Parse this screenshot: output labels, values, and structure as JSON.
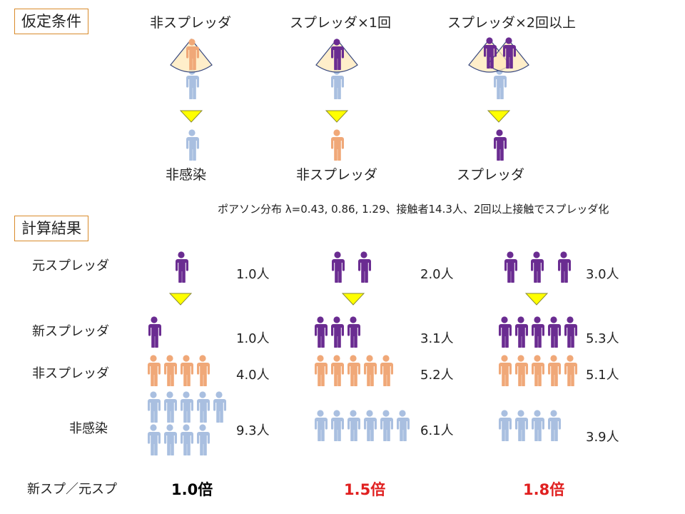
{
  "colors": {
    "spreader": "#6a2c91",
    "nonspreader": "#f0a878",
    "uninfected": "#a9bfe0",
    "arrow": "#ffff00",
    "fan": "#ffe8b8",
    "ratio_highlight": "#e02020",
    "box_border": "#d98b2b"
  },
  "assumptions": {
    "heading": "仮定条件",
    "columns": [
      {
        "title": "非スプレッダ",
        "result": "非感染"
      },
      {
        "title": "スプレッダ×1回",
        "result": "非スプレッダ"
      },
      {
        "title": "スプレッダ×2回以上",
        "result": "スプレッダ"
      }
    ],
    "note": "ポアソン分布 λ=0.43, 0.86, 1.29、接触者14.3人、2回以上接触でスプレッダ化"
  },
  "results": {
    "heading": "計算結果",
    "row_labels": {
      "original": "元スプレッダ",
      "new_spreader": "新スプレッダ",
      "non_spreader": "非スプレッダ",
      "uninfected": "非感染",
      "ratio": "新スプ／元スプ"
    },
    "columns": [
      {
        "original": "1.0人",
        "new_spreader": "1.0人",
        "non_spreader": "4.0人",
        "uninfected": "9.3人",
        "ratio": "1.0倍",
        "highlight": false
      },
      {
        "original": "2.0人",
        "new_spreader": "3.1人",
        "non_spreader": "5.2人",
        "uninfected": "6.1人",
        "ratio": "1.5倍",
        "highlight": true
      },
      {
        "original": "3.0人",
        "new_spreader": "5.3人",
        "non_spreader": "5.1人",
        "uninfected": "3.9人",
        "ratio": "1.8倍",
        "highlight": true
      }
    ]
  }
}
